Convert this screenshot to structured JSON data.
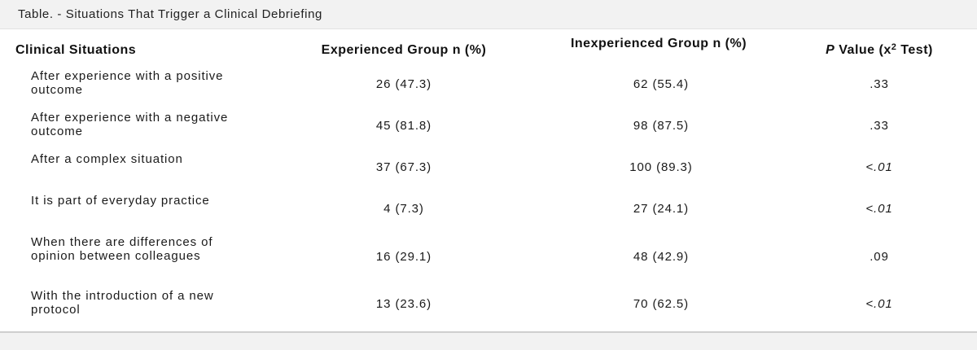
{
  "caption": "Table. - Situations That Trigger a Clinical Debriefing",
  "headers": {
    "col0": "Clinical Situations",
    "col1": "Experienced Group n (%)",
    "col2": "Inexperienced Group n (%)",
    "col3_p": "P",
    "col3_rest": " Value (x",
    "col3_sup": "2",
    "col3_end": " Test)"
  },
  "rows": [
    {
      "label": "After experience with a positive outcome",
      "experienced": "26 (47.3)",
      "inexperienced": "62 (55.4)",
      "p": ".33"
    },
    {
      "label": "After experience with a negative outcome",
      "experienced": "45 (81.8)",
      "inexperienced": "98 (87.5)",
      "p": ".33"
    },
    {
      "label": "After a complex situation",
      "experienced": "37 (67.3)",
      "inexperienced": "100 (89.3)",
      "p": "<.01"
    },
    {
      "label": "It is part of everyday practice",
      "experienced": "4 (7.3)",
      "inexperienced": "27 (24.1)",
      "p": "<.01"
    },
    {
      "label": "When there are differences of opinion between colleagues",
      "experienced": "16 (29.1)",
      "inexperienced": "48 (42.9)",
      "p": ".09"
    },
    {
      "label": "With the introduction of a new protocol",
      "experienced": "13 (23.6)",
      "inexperienced": "70 (62.5)",
      "p": "<.01"
    }
  ]
}
